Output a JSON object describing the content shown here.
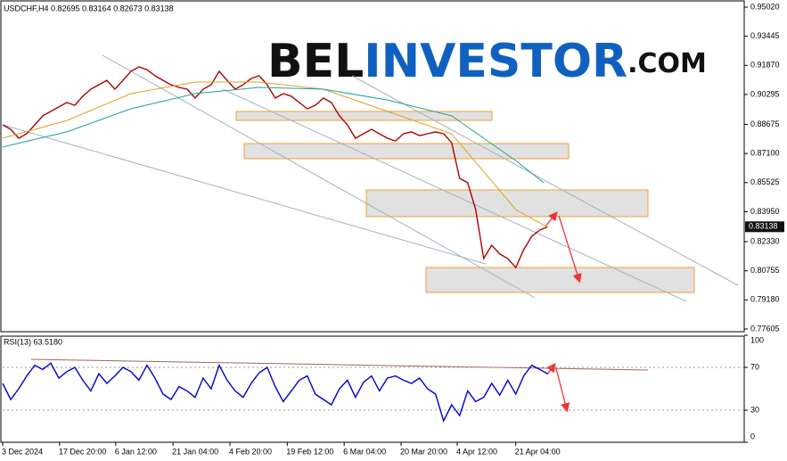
{
  "chart_data": [
    {
      "type": "line",
      "title": "USDCHF,H4 0.82695 0.83164 0.82673 0.83138",
      "watermark": [
        "BEL",
        "INVESTOR",
        ".COM"
      ],
      "last_price": 0.83138,
      "xlim": [
        0,
        185
      ],
      "x": [
        0,
        2,
        4,
        6,
        8,
        10,
        12,
        14,
        16,
        18,
        20,
        22,
        24,
        26,
        28,
        30,
        32,
        34,
        36,
        38,
        40,
        42,
        44,
        46,
        48,
        50,
        52,
        54,
        56,
        58,
        60,
        62,
        64,
        66,
        68,
        70,
        72,
        74,
        76,
        78,
        80,
        82,
        84,
        86,
        88,
        90,
        92,
        94,
        96,
        98,
        100,
        102,
        104,
        106,
        108,
        110,
        112,
        114,
        116,
        118,
        120,
        122,
        124,
        126,
        128,
        130,
        132,
        134,
        136
      ],
      "xticks": [
        {
          "value": 0,
          "label": "3 Dec 2024"
        },
        {
          "value": 14.2,
          "label": "17 Dec 20:00"
        },
        {
          "value": 28.2,
          "label": "6 Jan 12:00"
        },
        {
          "value": 42.5,
          "label": "21 Jan 04:00"
        },
        {
          "value": 56.7,
          "label": "4 Feb 20:00"
        },
        {
          "value": 71,
          "label": "19 Feb 12:00"
        },
        {
          "value": 85.2,
          "label": "6 Mar 04:00"
        },
        {
          "value": 99.4,
          "label": "20 Mar 20:00"
        },
        {
          "value": 113.4,
          "label": "4 Apr 12:00"
        },
        {
          "value": 128,
          "label": "21 Apr 04:00"
        }
      ],
      "ylim": [
        0.77605,
        0.9502
      ],
      "yticks": [
        {
          "value": 0.9502,
          "label": "0.95020"
        },
        0.93445,
        {
          "value": 0.9187,
          "label": "0.91870"
        },
        0.90295,
        0.88675,
        {
          "value": 0.871,
          "label": "0.87100"
        },
        0.85525,
        {
          "value": 0.8395,
          "label": "0.83950"
        },
        {
          "value": 0.8233,
          "label": "0.82330"
        },
        0.80755,
        {
          "value": 0.7918,
          "label": "0.79180"
        },
        0.77605
      ],
      "series": [
        {
          "color": "#b00000",
          "values": [
            0.8865,
            0.8841,
            0.8793,
            0.8817,
            0.8865,
            0.8914,
            0.8938,
            0.8962,
            0.8986,
            0.8971,
            0.902,
            0.9058,
            0.9082,
            0.9106,
            0.9058,
            0.9106,
            0.9155,
            0.9179,
            0.9164,
            0.9131,
            0.9106,
            0.9082,
            0.9068,
            0.9058,
            0.901,
            0.9058,
            0.9082,
            0.9155,
            0.9106,
            0.9058,
            0.9082,
            0.9116,
            0.9131,
            0.9082,
            0.901,
            0.9034,
            0.902,
            0.8986,
            0.8952,
            0.8971,
            0.901,
            0.8986,
            0.8914,
            0.8865,
            0.8793,
            0.8817,
            0.8841,
            0.8817,
            0.8793,
            0.8778,
            0.8817,
            0.8827,
            0.8807,
            0.8817,
            0.8827,
            0.8817,
            0.8769,
            0.8576,
            0.8552,
            0.8407,
            0.8142,
            0.8214,
            0.8166,
            0.8142,
            0.8093,
            0.819,
            0.8262,
            0.8296,
            0.8314
          ]
        },
        {
          "color": "#e0a020",
          "x": [
            0,
            16,
            32,
            48,
            64,
            80,
            96,
            112,
            128,
            136
          ],
          "values": [
            0.8793,
            0.8889,
            0.9034,
            0.9097,
            0.9097,
            0.9058,
            0.8938,
            0.8817,
            0.8407,
            0.831
          ]
        },
        {
          "color": "#20a0a0",
          "x": [
            0,
            16,
            32,
            48,
            64,
            80,
            96,
            112,
            128,
            135
          ],
          "values": [
            0.8745,
            0.8827,
            0.8952,
            0.9034,
            0.9068,
            0.9058,
            0.9,
            0.8914,
            0.8672,
            0.8552
          ]
        }
      ]
    },
    {
      "type": "line",
      "title": "RSI(13) 63.5180",
      "xlim": [
        0,
        185
      ],
      "x": [
        0,
        2,
        4,
        6,
        8,
        10,
        12,
        14,
        16,
        18,
        20,
        22,
        24,
        26,
        28,
        30,
        32,
        34,
        36,
        38,
        40,
        42,
        44,
        46,
        48,
        50,
        52,
        54,
        56,
        58,
        60,
        62,
        64,
        66,
        68,
        70,
        72,
        74,
        76,
        78,
        80,
        82,
        84,
        86,
        88,
        90,
        92,
        94,
        96,
        98,
        100,
        102,
        104,
        106,
        108,
        110,
        112,
        114,
        116,
        118,
        120,
        122,
        124,
        126,
        128,
        130,
        132,
        134,
        136
      ],
      "ylim": [
        0,
        100
      ],
      "yticks": [
        0,
        30,
        70,
        100
      ],
      "grid": [
        30,
        70
      ],
      "series": [
        {
          "color": "#0000cc",
          "values": [
            55,
            40,
            50,
            62,
            72,
            68,
            74,
            60,
            66,
            70,
            58,
            48,
            64,
            55,
            62,
            70,
            66,
            58,
            72,
            60,
            45,
            40,
            52,
            48,
            42,
            60,
            50,
            72,
            58,
            48,
            42,
            55,
            65,
            70,
            52,
            38,
            48,
            58,
            62,
            45,
            40,
            35,
            50,
            58,
            42,
            56,
            62,
            48,
            60,
            62,
            58,
            55,
            60,
            50,
            45,
            20,
            35,
            25,
            48,
            38,
            42,
            55,
            44,
            58,
            45,
            62,
            72,
            68,
            64
          ]
        }
      ]
    }
  ]
}
